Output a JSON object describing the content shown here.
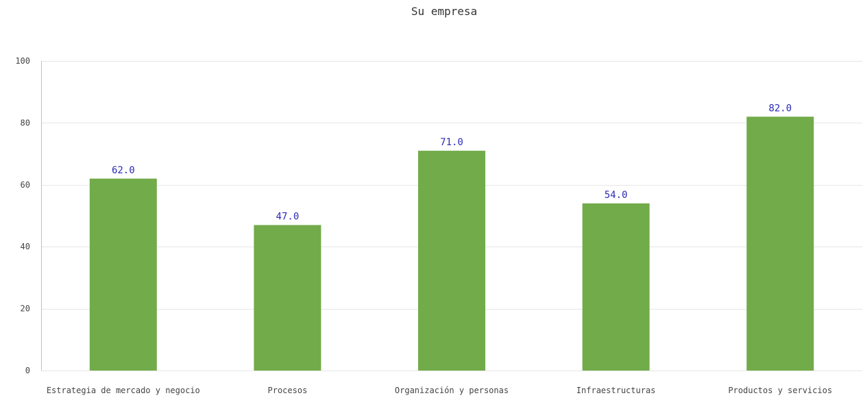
{
  "chart_data": {
    "type": "bar",
    "title": "Su empresa",
    "xlabel": "",
    "ylabel": "",
    "categories": [
      "Estrategia de mercado y negocio",
      "Procesos",
      "Organización y personas",
      "Infraestructuras",
      "Productos y servicios"
    ],
    "values": [
      62.0,
      47.0,
      71.0,
      54.0,
      82.0
    ],
    "data_labels": [
      "62.0",
      "47.0",
      "71.0",
      "54.0",
      "82.0"
    ],
    "y_ticks": [
      0,
      20,
      40,
      60,
      80,
      100
    ],
    "ylim": [
      0,
      100
    ],
    "grid": true,
    "legend": "none",
    "colors": {
      "bar": "#72ab4a",
      "data_label": "#2a2ab5",
      "grid": "#e6e6e6",
      "axis": "#bfbfbf",
      "text": "#444444"
    }
  }
}
